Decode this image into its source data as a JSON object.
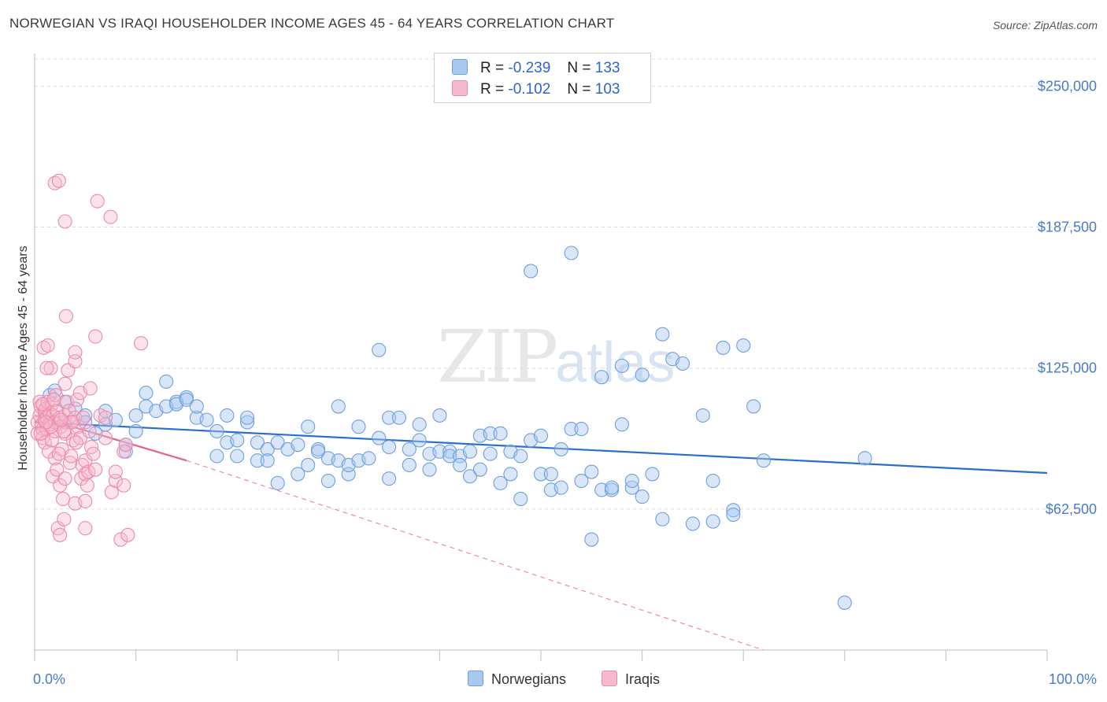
{
  "header": {
    "title": "NORWEGIAN VS IRAQI HOUSEHOLDER INCOME AGES 45 - 64 YEARS CORRELATION CHART",
    "source": "Source: ZipAtlas.com"
  },
  "watermark": {
    "zip": "ZIP",
    "atlas": "atlas"
  },
  "legend": {
    "rows": [
      {
        "r_label": "R =",
        "r_value": "-0.239",
        "n_label": "N =",
        "n_value": "133"
      },
      {
        "r_label": "R =",
        "r_value": "-0.102",
        "n_label": "N =",
        "n_value": "103"
      }
    ]
  },
  "bottom_legend": {
    "series1": "Norwegians",
    "series2": "Iraqis"
  },
  "colors": {
    "blue_fill": "#a9c8f0",
    "blue_stroke": "#6d9fe0",
    "blue_line": "#2a6fcf",
    "pink_fill": "#f6b9cc",
    "pink_stroke": "#ee8aab",
    "pink_line": "#e8628f",
    "grid": "#dddddd",
    "axis_text": "#4a7cc6"
  },
  "chart_data": {
    "type": "scatter",
    "title": "NORWEGIAN VS IRAQI HOUSEHOLDER INCOME AGES 45 - 64 YEARS CORRELATION CHART",
    "xlabel": "",
    "ylabel": "Householder Income Ages 45 - 64 years",
    "xlim": [
      0,
      100
    ],
    "ylim": [
      0,
      262000
    ],
    "x_tick_labels": [
      "0.0%",
      "100.0%"
    ],
    "y_ticks": [
      62500,
      125000,
      187500,
      250000
    ],
    "y_tick_labels": [
      "$62,500",
      "$125,000",
      "$187,500",
      "$250,000"
    ],
    "series": [
      {
        "name": "Norwegians",
        "r": -0.239,
        "n": 133,
        "trend": {
          "x": [
            0,
            100
          ],
          "y": [
            101000,
            78500
          ]
        },
        "points": [
          [
            1,
            105000
          ],
          [
            1.5,
            113000
          ],
          [
            2,
            115000
          ],
          [
            3,
            101000
          ],
          [
            3,
            110000
          ],
          [
            4,
            107000
          ],
          [
            5,
            104000
          ],
          [
            5,
            101000
          ],
          [
            6,
            96000
          ],
          [
            7,
            106000
          ],
          [
            7,
            100000
          ],
          [
            8,
            102000
          ],
          [
            9,
            91000
          ],
          [
            9,
            88000
          ],
          [
            10,
            97000
          ],
          [
            10,
            104000
          ],
          [
            11,
            114000
          ],
          [
            11,
            108000
          ],
          [
            12,
            106000
          ],
          [
            13,
            119000
          ],
          [
            13,
            108000
          ],
          [
            14,
            110000
          ],
          [
            14,
            109000
          ],
          [
            15,
            112000
          ],
          [
            15,
            111000
          ],
          [
            16,
            103000
          ],
          [
            16,
            108000
          ],
          [
            17,
            102000
          ],
          [
            18,
            97000
          ],
          [
            18,
            86000
          ],
          [
            19,
            104000
          ],
          [
            19,
            92000
          ],
          [
            20,
            93000
          ],
          [
            20,
            86000
          ],
          [
            21,
            101000
          ],
          [
            21,
            103000
          ],
          [
            22,
            92000
          ],
          [
            22,
            84000
          ],
          [
            23,
            89000
          ],
          [
            23,
            84000
          ],
          [
            24,
            92000
          ],
          [
            24,
            74000
          ],
          [
            25,
            89000
          ],
          [
            26,
            91000
          ],
          [
            26,
            78000
          ],
          [
            27,
            82000
          ],
          [
            27,
            99000
          ],
          [
            28,
            89000
          ],
          [
            28,
            88000
          ],
          [
            29,
            85000
          ],
          [
            29,
            75000
          ],
          [
            30,
            108000
          ],
          [
            30,
            84000
          ],
          [
            31,
            78000
          ],
          [
            31,
            82000
          ],
          [
            32,
            99000
          ],
          [
            32,
            84000
          ],
          [
            33,
            85000
          ],
          [
            34,
            133000
          ],
          [
            34,
            94000
          ],
          [
            35,
            103000
          ],
          [
            35,
            90000
          ],
          [
            35,
            76000
          ],
          [
            36,
            103000
          ],
          [
            37,
            89000
          ],
          [
            37,
            82000
          ],
          [
            38,
            93000
          ],
          [
            38,
            100000
          ],
          [
            39,
            87000
          ],
          [
            39,
            80000
          ],
          [
            40,
            104000
          ],
          [
            40,
            88000
          ],
          [
            41,
            88000
          ],
          [
            41,
            86000
          ],
          [
            42,
            86000
          ],
          [
            42,
            82000
          ],
          [
            43,
            88000
          ],
          [
            43,
            77000
          ],
          [
            44,
            80000
          ],
          [
            44,
            95000
          ],
          [
            45,
            96000
          ],
          [
            45,
            87000
          ],
          [
            46,
            96000
          ],
          [
            46,
            74000
          ],
          [
            47,
            88000
          ],
          [
            47,
            78000
          ],
          [
            48,
            67000
          ],
          [
            48,
            86000
          ],
          [
            49,
            168000
          ],
          [
            49,
            93000
          ],
          [
            50,
            95000
          ],
          [
            50,
            78000
          ],
          [
            51,
            78000
          ],
          [
            51,
            71000
          ],
          [
            52,
            89000
          ],
          [
            52,
            72000
          ],
          [
            53,
            98000
          ],
          [
            53,
            176000
          ],
          [
            54,
            75000
          ],
          [
            54,
            98000
          ],
          [
            55,
            49000
          ],
          [
            55,
            79000
          ],
          [
            56,
            71000
          ],
          [
            56,
            121000
          ],
          [
            57,
            71000
          ],
          [
            57,
            72000
          ],
          [
            58,
            126000
          ],
          [
            58,
            100000
          ],
          [
            59,
            72000
          ],
          [
            59,
            75000
          ],
          [
            60,
            122000
          ],
          [
            60,
            68000
          ],
          [
            61,
            78000
          ],
          [
            62,
            58000
          ],
          [
            62,
            140000
          ],
          [
            63,
            129000
          ],
          [
            64,
            127000
          ],
          [
            65,
            56000
          ],
          [
            66,
            104000
          ],
          [
            67,
            75000
          ],
          [
            67,
            57000
          ],
          [
            68,
            134000
          ],
          [
            69,
            62000
          ],
          [
            69,
            60000
          ],
          [
            70,
            135000
          ],
          [
            71,
            108000
          ],
          [
            72,
            84000
          ],
          [
            80,
            21000
          ],
          [
            82,
            85000
          ]
        ]
      },
      {
        "name": "Iraqis",
        "r": -0.102,
        "n": 103,
        "trend": {
          "x": [
            0,
            15
          ],
          "y": [
            104000,
            84000
          ]
        },
        "trend_extended": {
          "x": [
            15,
            72
          ],
          "y": [
            84000,
            0
          ]
        },
        "points": [
          [
            0.3,
            101000
          ],
          [
            0.3,
            96000
          ],
          [
            0.5,
            110000
          ],
          [
            0.5,
            104000
          ],
          [
            0.6,
            108000
          ],
          [
            0.7,
            100000
          ],
          [
            0.8,
            98000
          ],
          [
            0.8,
            94000
          ],
          [
            0.9,
            134000
          ],
          [
            1,
            106000
          ],
          [
            1,
            102000
          ],
          [
            1,
            92000
          ],
          [
            1.1,
            107000
          ],
          [
            1.2,
            103000
          ],
          [
            1.2,
            98000
          ],
          [
            1.3,
            110000
          ],
          [
            1.3,
            135000
          ],
          [
            1.4,
            88000
          ],
          [
            1.5,
            105000
          ],
          [
            1.5,
            100000
          ],
          [
            1.6,
            125000
          ],
          [
            1.7,
            109000
          ],
          [
            1.7,
            93000
          ],
          [
            1.8,
            104000
          ],
          [
            1.8,
            77000
          ],
          [
            2,
            207000
          ],
          [
            2,
            101000
          ],
          [
            2,
            97000
          ],
          [
            2,
            85000
          ],
          [
            2.1,
            113000
          ],
          [
            2.2,
            106000
          ],
          [
            2.2,
            80000
          ],
          [
            2.3,
            54000
          ],
          [
            2.4,
            208000
          ],
          [
            2.5,
            103000
          ],
          [
            2.5,
            73000
          ],
          [
            2.5,
            51000
          ],
          [
            2.6,
            99000
          ],
          [
            2.7,
            89000
          ],
          [
            2.8,
            67000
          ],
          [
            2.9,
            58000
          ],
          [
            3,
            190000
          ],
          [
            3,
            118000
          ],
          [
            3,
            104000
          ],
          [
            3,
            96000
          ],
          [
            3,
            76000
          ],
          [
            3.1,
            148000
          ],
          [
            3.2,
            110000
          ],
          [
            3.3,
            124000
          ],
          [
            3.4,
            106000
          ],
          [
            3.5,
            101000
          ],
          [
            3.5,
            83000
          ],
          [
            3.6,
            86000
          ],
          [
            3.8,
            93000
          ],
          [
            4,
            128000
          ],
          [
            4,
            132000
          ],
          [
            4,
            103000
          ],
          [
            4,
            65000
          ],
          [
            4.2,
            111000
          ],
          [
            4.3,
            99000
          ],
          [
            4.5,
            114000
          ],
          [
            4.5,
            94000
          ],
          [
            4.6,
            76000
          ],
          [
            4.7,
            82000
          ],
          [
            4.8,
            103000
          ],
          [
            5,
            66000
          ],
          [
            5,
            84000
          ],
          [
            5,
            78000
          ],
          [
            5,
            54000
          ],
          [
            5.2,
            73000
          ],
          [
            5.3,
            79000
          ],
          [
            5.5,
            116000
          ],
          [
            5.6,
            90000
          ],
          [
            5.8,
            87000
          ],
          [
            6,
            80000
          ],
          [
            6,
            139000
          ],
          [
            6.2,
            199000
          ],
          [
            6.5,
            104000
          ],
          [
            7,
            94000
          ],
          [
            7,
            103000
          ],
          [
            7.5,
            192000
          ],
          [
            7.6,
            70000
          ],
          [
            8,
            75000
          ],
          [
            8,
            79000
          ],
          [
            8.5,
            49000
          ],
          [
            8.8,
            88000
          ],
          [
            8.8,
            73000
          ],
          [
            9,
            91000
          ],
          [
            9.2,
            51000
          ],
          [
            10.5,
            136000
          ],
          [
            1.2,
            125000
          ],
          [
            0.8,
            109000
          ],
          [
            1.6,
            99000
          ],
          [
            2.4,
            87000
          ],
          [
            1.1,
            101000
          ],
          [
            0.6,
            96000
          ],
          [
            3.7,
            101000
          ],
          [
            2.9,
            97000
          ],
          [
            1.9,
            111000
          ],
          [
            4.1,
            92000
          ],
          [
            2.6,
            102000
          ],
          [
            5.4,
            97000
          ]
        ]
      }
    ]
  }
}
